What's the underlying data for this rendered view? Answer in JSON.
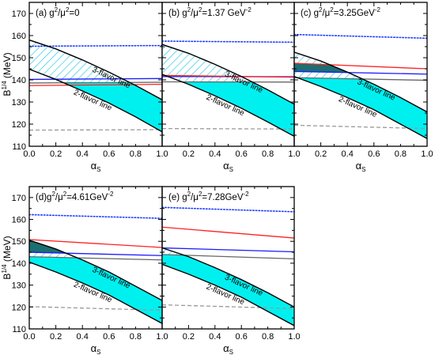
{
  "figure": {
    "y_axis_label": "B",
    "y_axis_label_sup": "1/4",
    "y_axis_label_unit": " (MeV)",
    "x_axis_label": "α",
    "x_axis_label_sub": "S",
    "band_labels": {
      "three_flavor": "3-flavor line",
      "two_flavor": "2-flavor line"
    }
  },
  "chart_data": [
    {
      "type": "line",
      "panel_label_parts": [
        "(a) g",
        "2",
        "/μ",
        "2",
        "=0"
      ],
      "xlim": [
        0,
        1
      ],
      "ylim": [
        110,
        175
      ],
      "xticks": [
        "0.0",
        "0.2",
        "0.4",
        "0.6",
        "0.8",
        "1.0"
      ],
      "yticks": [
        "110",
        "120",
        "130",
        "140",
        "150",
        "160",
        "170"
      ],
      "series": [
        {
          "x": [
            0,
            0.2,
            0.4,
            0.6,
            0.8,
            1.0
          ],
          "y": [
            158.0,
            154.0,
            149.0,
            143.5,
            137.5,
            131.0
          ],
          "color": "#000000",
          "style": "solid"
        },
        {
          "x": [
            0,
            0.2,
            0.4,
            0.6,
            0.8,
            1.0
          ],
          "y": [
            144.8,
            140.2,
            135.0,
            129.5,
            123.3,
            116.5
          ],
          "color": "#000000",
          "style": "solid"
        },
        {
          "x": [
            0,
            1.0
          ],
          "y": [
            155.2,
            155.5
          ],
          "color": "#1f3fff",
          "style": "dotted"
        },
        {
          "x": [
            0,
            1.0
          ],
          "y": [
            140.2,
            140.6
          ],
          "color": "#1a1aff",
          "style": "solid"
        },
        {
          "x": [
            0,
            1.0
          ],
          "y": [
            137.4,
            138.0
          ],
          "color": "#ff2020",
          "style": "solid"
        },
        {
          "x": [
            0,
            1.0
          ],
          "y": [
            138.6,
            138.9
          ],
          "color": "#666666",
          "style": "solid"
        },
        {
          "x": [
            0,
            1.0
          ],
          "y": [
            117.3,
            117.5
          ],
          "color": "#999999",
          "style": "dashed"
        }
      ]
    },
    {
      "type": "line",
      "panel_label_parts": [
        "(b) g",
        "2",
        "/μ",
        "2",
        "=1.37 GeV",
        "-2"
      ],
      "xlim": [
        0,
        1
      ],
      "ylim": [
        110,
        175
      ],
      "xticks": [
        "0.0",
        "0.2",
        "0.4",
        "0.6",
        "0.8",
        "1.0"
      ],
      "yticks": [],
      "series": [
        {
          "x": [
            0,
            0.2,
            0.4,
            0.6,
            0.8,
            1.0
          ],
          "y": [
            156.0,
            152.0,
            147.0,
            141.5,
            135.5,
            129.0
          ],
          "color": "#000000",
          "style": "solid"
        },
        {
          "x": [
            0,
            0.2,
            0.4,
            0.6,
            0.8,
            1.0
          ],
          "y": [
            142.5,
            138.0,
            132.8,
            127.2,
            121.0,
            114.5
          ],
          "color": "#000000",
          "style": "solid"
        },
        {
          "x": [
            0,
            1.0
          ],
          "y": [
            157.5,
            157.0
          ],
          "color": "#1f3fff",
          "style": "dotted"
        },
        {
          "x": [
            0,
            1.0
          ],
          "y": [
            141.5,
            141.4
          ],
          "color": "#1a1aff",
          "style": "solid"
        },
        {
          "x": [
            0,
            1.0
          ],
          "y": [
            142.0,
            141.2
          ],
          "color": "#ff2020",
          "style": "solid"
        },
        {
          "x": [
            0,
            1.0
          ],
          "y": [
            139.1,
            139.0
          ],
          "color": "#666666",
          "style": "solid"
        },
        {
          "x": [
            0,
            1.0
          ],
          "y": [
            118.0,
            117.8
          ],
          "color": "#999999",
          "style": "dashed"
        }
      ]
    },
    {
      "type": "line",
      "panel_label_parts": [
        "(c) g",
        "2",
        "/μ",
        "2",
        "=3.25GeV",
        "-2"
      ],
      "xlim": [
        0,
        1
      ],
      "ylim": [
        110,
        175
      ],
      "xticks": [
        "0.0",
        "0.2",
        "0.4",
        "0.6",
        "0.8",
        "1.0"
      ],
      "yticks": [],
      "series": [
        {
          "x": [
            0,
            0.2,
            0.4,
            0.6,
            0.8,
            1.0
          ],
          "y": [
            152.5,
            148.5,
            143.5,
            138.0,
            132.0,
            125.5
          ],
          "color": "#000000",
          "style": "solid"
        },
        {
          "x": [
            0,
            0.2,
            0.4,
            0.6,
            0.8,
            1.0
          ],
          "y": [
            141.5,
            137.0,
            132.0,
            126.5,
            120.0,
            113.5
          ],
          "color": "#000000",
          "style": "solid"
        },
        {
          "x": [
            0,
            1.0
          ],
          "y": [
            160.5,
            158.8
          ],
          "color": "#1f3fff",
          "style": "dotted"
        },
        {
          "x": [
            0,
            1.0
          ],
          "y": [
            143.8,
            142.6
          ],
          "color": "#1a1aff",
          "style": "solid"
        },
        {
          "x": [
            0,
            1.0
          ],
          "y": [
            147.5,
            145.0
          ],
          "color": "#ff2020",
          "style": "solid"
        },
        {
          "x": [
            0,
            1.0
          ],
          "y": [
            141.0,
            139.8
          ],
          "color": "#666666",
          "style": "solid"
        },
        {
          "x": [
            0,
            1.0
          ],
          "y": [
            119.5,
            118.0
          ],
          "color": "#999999",
          "style": "dashed"
        }
      ]
    },
    {
      "type": "line",
      "panel_label_parts": [
        "(d)g",
        "2",
        "/μ",
        "2",
        "=4.61GeV",
        "-2"
      ],
      "xlim": [
        0,
        1
      ],
      "ylim": [
        110,
        175
      ],
      "xticks": [
        "0.0",
        "0.2",
        "0.4",
        "0.6",
        "0.8",
        "1.0"
      ],
      "yticks": [
        "110",
        "120",
        "130",
        "140",
        "150",
        "160",
        "170"
      ],
      "series": [
        {
          "x": [
            0,
            0.2,
            0.4,
            0.6,
            0.8,
            1.0
          ],
          "y": [
            150.5,
            146.5,
            141.5,
            136.0,
            129.5,
            123.0
          ],
          "color": "#000000",
          "style": "solid"
        },
        {
          "x": [
            0,
            0.2,
            0.4,
            0.6,
            0.8,
            1.0
          ],
          "y": [
            140.5,
            136.0,
            131.0,
            125.5,
            119.0,
            112.5
          ],
          "color": "#000000",
          "style": "solid"
        },
        {
          "x": [
            0,
            1.0
          ],
          "y": [
            162.2,
            160.5
          ],
          "color": "#1f3fff",
          "style": "dotted"
        },
        {
          "x": [
            0,
            1.0
          ],
          "y": [
            145.0,
            143.5
          ],
          "color": "#1a1aff",
          "style": "solid"
        },
        {
          "x": [
            0,
            1.0
          ],
          "y": [
            150.8,
            147.2
          ],
          "color": "#ff2020",
          "style": "solid"
        },
        {
          "x": [
            0,
            1.0
          ],
          "y": [
            143.0,
            141.5
          ],
          "color": "#666666",
          "style": "solid"
        },
        {
          "x": [
            0,
            1.0
          ],
          "y": [
            120.2,
            118.5
          ],
          "color": "#999999",
          "style": "dashed"
        }
      ]
    },
    {
      "type": "line",
      "panel_label_parts": [
        "(e) g",
        "2",
        "/μ",
        "2",
        "=7.28GeV",
        "-2"
      ],
      "xlim": [
        0,
        1
      ],
      "ylim": [
        110,
        175
      ],
      "xticks": [
        "0.0",
        "0.2",
        "0.4",
        "0.6",
        "0.8",
        "1.0"
      ],
      "yticks": [],
      "series": [
        {
          "x": [
            0,
            0.2,
            0.4,
            0.6,
            0.8,
            1.0
          ],
          "y": [
            147.0,
            143.0,
            138.0,
            132.5,
            126.5,
            120.0
          ],
          "color": "#000000",
          "style": "solid"
        },
        {
          "x": [
            0,
            0.2,
            0.4,
            0.6,
            0.8,
            1.0
          ],
          "y": [
            139.5,
            135.0,
            130.0,
            124.5,
            118.0,
            111.5
          ],
          "color": "#000000",
          "style": "solid"
        },
        {
          "x": [
            0,
            1.0
          ],
          "y": [
            165.5,
            163.5
          ],
          "color": "#1f3fff",
          "style": "dotted"
        },
        {
          "x": [
            0,
            1.0
          ],
          "y": [
            147.0,
            145.2
          ],
          "color": "#1a1aff",
          "style": "solid"
        },
        {
          "x": [
            0,
            1.0
          ],
          "y": [
            156.5,
            151.5
          ],
          "color": "#ff2020",
          "style": "solid"
        },
        {
          "x": [
            0,
            1.0
          ],
          "y": [
            144.0,
            142.0
          ],
          "color": "#666666",
          "style": "solid"
        },
        {
          "x": [
            0,
            1.0
          ],
          "y": [
            121.0,
            119.3
          ],
          "color": "#999999",
          "style": "dashed"
        }
      ]
    }
  ]
}
